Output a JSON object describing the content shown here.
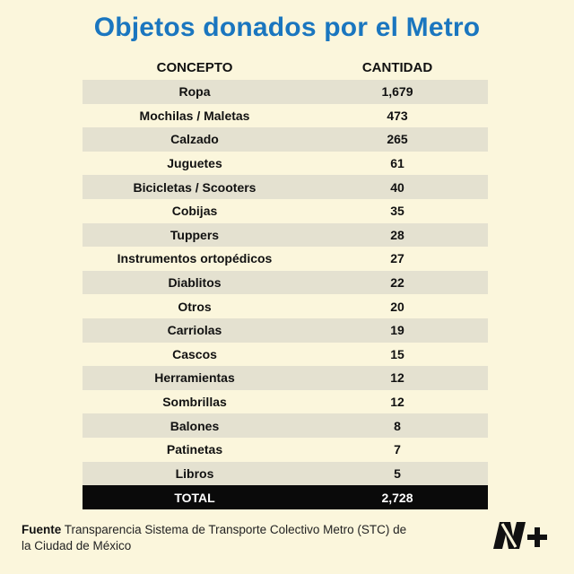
{
  "title": "Objetos donados por el Metro",
  "table": {
    "headers": {
      "concept": "CONCEPTO",
      "quantity": "CANTIDAD"
    },
    "rows": [
      {
        "concept": "Ropa",
        "quantity": "1,679"
      },
      {
        "concept": "Mochilas / Maletas",
        "quantity": "473"
      },
      {
        "concept": "Calzado",
        "quantity": "265"
      },
      {
        "concept": "Juguetes",
        "quantity": "61"
      },
      {
        "concept": "Bicicletas / Scooters",
        "quantity": "40"
      },
      {
        "concept": "Cobijas",
        "quantity": "35"
      },
      {
        "concept": "Tuppers",
        "quantity": "28"
      },
      {
        "concept": "Instrumentos ortopédicos",
        "quantity": "27"
      },
      {
        "concept": "Diablitos",
        "quantity": "22"
      },
      {
        "concept": "Otros",
        "quantity": "20"
      },
      {
        "concept": "Carriolas",
        "quantity": "19"
      },
      {
        "concept": "Cascos",
        "quantity": "15"
      },
      {
        "concept": "Herramientas",
        "quantity": "12"
      },
      {
        "concept": "Sombrillas",
        "quantity": "12"
      },
      {
        "concept": "Balones",
        "quantity": "8"
      },
      {
        "concept": "Patinetas",
        "quantity": "7"
      },
      {
        "concept": "Libros",
        "quantity": "5"
      }
    ],
    "total": {
      "label": "TOTAL",
      "value": "2,728"
    }
  },
  "source": {
    "label": "Fuente",
    "text": "Transparencia Sistema de Transporte Colectivo Metro (STC) de la Ciudad de México"
  },
  "logo": {
    "icon": "n-plus-logo",
    "text": "N+"
  },
  "colors": {
    "background": "#fbf6dc",
    "title": "#1a76bf",
    "row_shade": "#e4e1d0",
    "total_bg": "#0a0a0a"
  }
}
